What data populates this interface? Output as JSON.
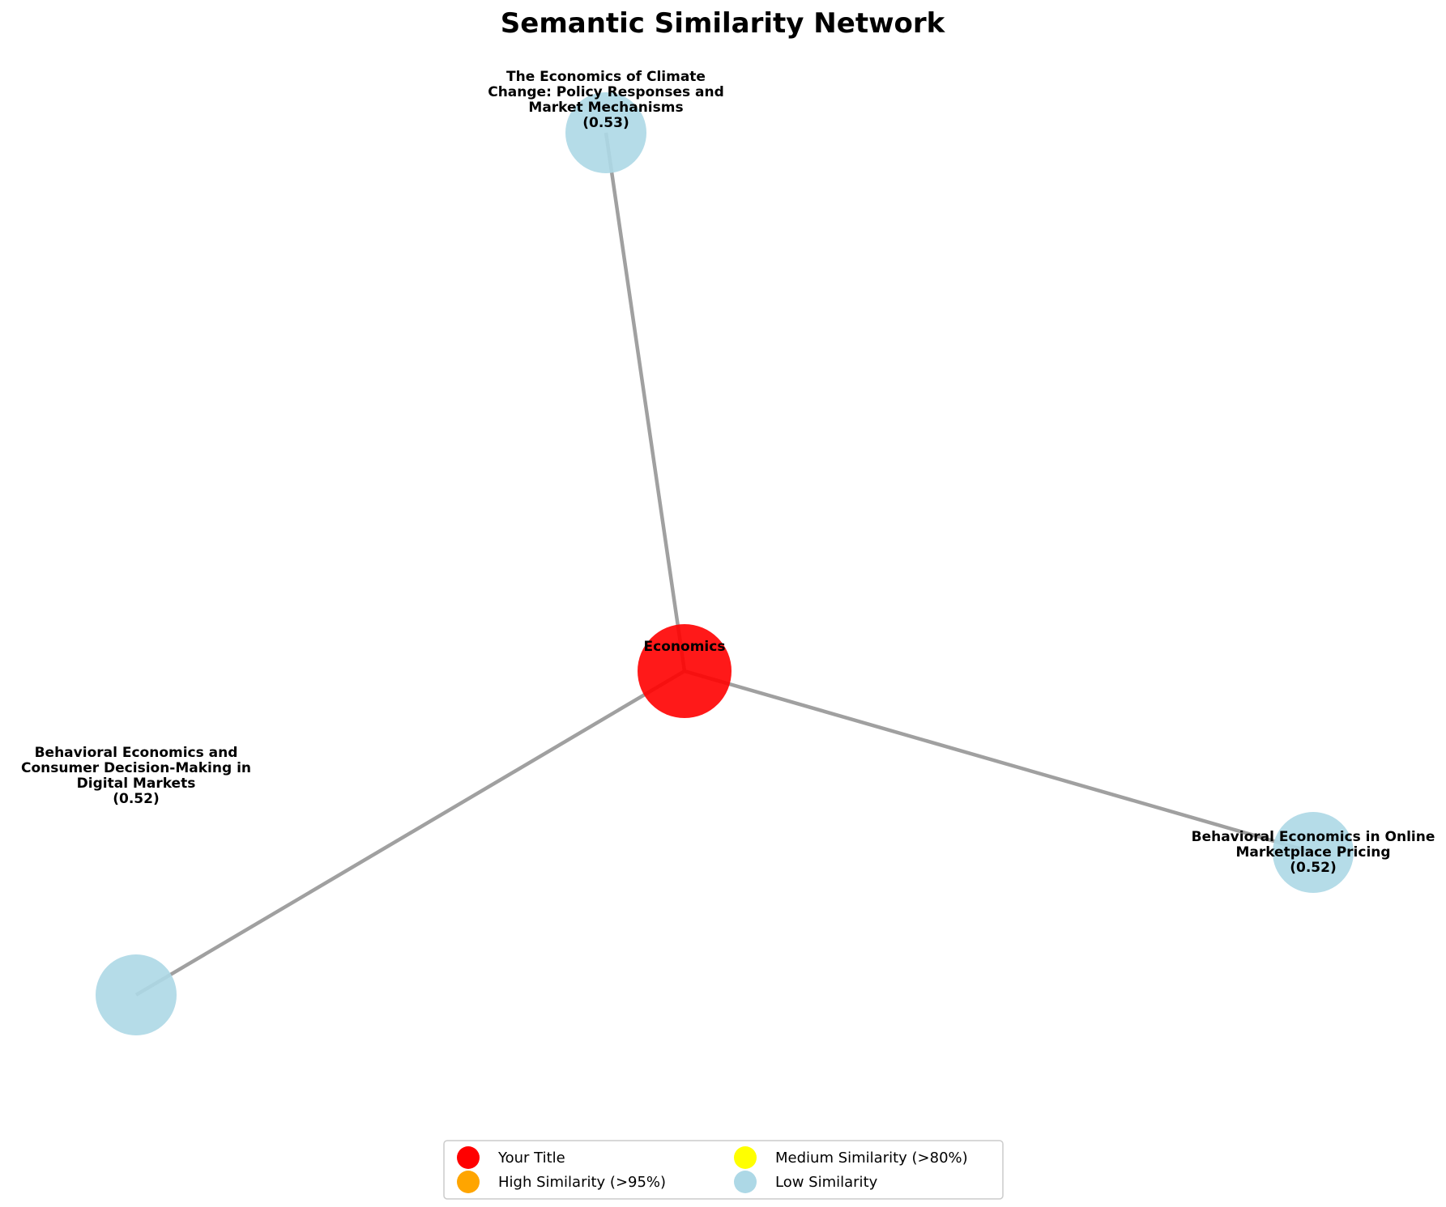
{
  "title": "Semantic Similarity Network",
  "center_node": {
    "label": "Economics",
    "category": "your-title",
    "color": "#ff0000"
  },
  "nodes": [
    {
      "id": "n1",
      "lines": [
        "The Economics of Climate",
        "Change: Policy Responses and",
        "Market Mechanisms",
        "(0.53)"
      ],
      "similarity": 0.53,
      "category": "low",
      "color": "#add8e6"
    },
    {
      "id": "n2",
      "lines": [
        "Behavioral Economics in Online",
        "Marketplace Pricing",
        "(0.52)"
      ],
      "similarity": 0.52,
      "category": "low",
      "color": "#add8e6"
    },
    {
      "id": "n3",
      "lines": [
        "Behavioral Economics and",
        "Consumer Decision-Making in",
        "Digital Markets",
        "(0.52)"
      ],
      "similarity": 0.52,
      "category": "low",
      "color": "#add8e6"
    }
  ],
  "edge_color": "#a0a0a0",
  "legend": [
    {
      "label": "Your Title",
      "color": "#ff0000"
    },
    {
      "label": "High Similarity (>95%)",
      "color": "#ffa500"
    },
    {
      "label": "Medium Similarity (>80%)",
      "color": "#ffff00"
    },
    {
      "label": "Low Similarity",
      "color": "#add8e6"
    }
  ]
}
